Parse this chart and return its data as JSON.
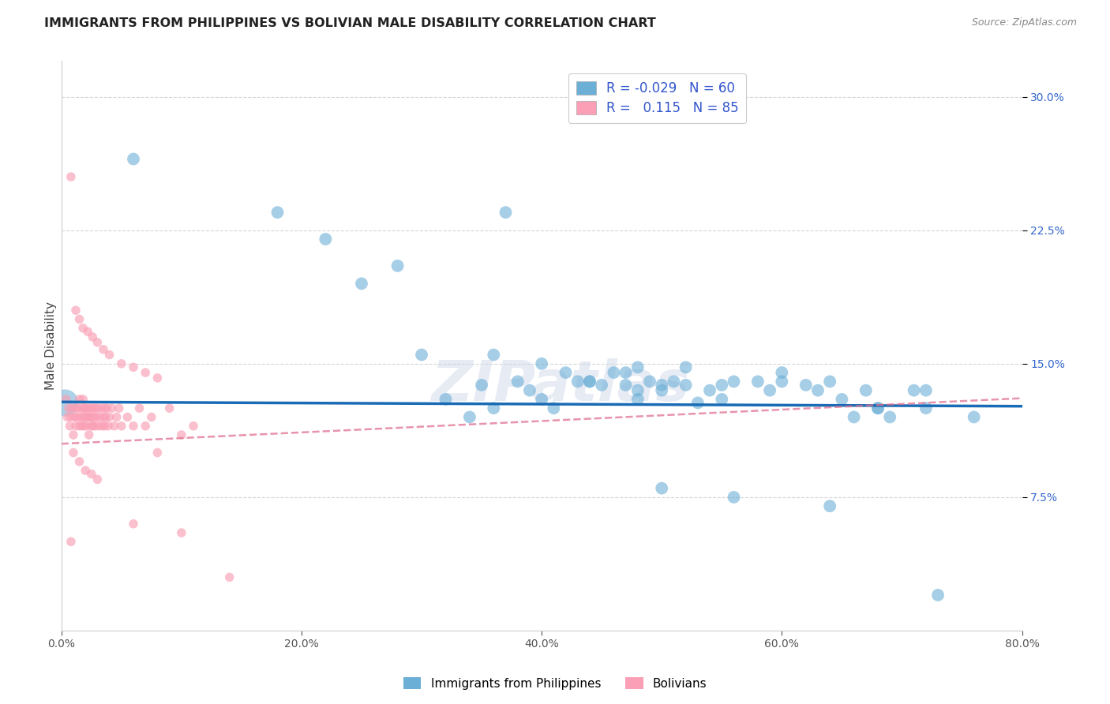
{
  "title": "IMMIGRANTS FROM PHILIPPINES VS BOLIVIAN MALE DISABILITY CORRELATION CHART",
  "source": "Source: ZipAtlas.com",
  "ylabel": "Male Disability",
  "ytick_labels": [
    "7.5%",
    "15.0%",
    "22.5%",
    "30.0%"
  ],
  "ytick_values": [
    0.075,
    0.15,
    0.225,
    0.3
  ],
  "xmin": 0.0,
  "xmax": 0.8,
  "ymin": 0.0,
  "ymax": 0.32,
  "legend_R_blue": "-0.029",
  "legend_N_blue": "60",
  "legend_R_pink": "0.115",
  "legend_N_pink": "85",
  "color_blue": "#6baed6",
  "color_pink": "#fa9fb5",
  "trendline_blue_color": "#1a6bb5",
  "trendline_pink_color": "#e07090",
  "watermark": "ZIPatlas",
  "background_color": "#ffffff",
  "grid_color": "#cccccc",
  "blue_x": [
    0.06,
    0.18,
    0.37,
    0.22,
    0.25,
    0.28,
    0.3,
    0.32,
    0.34,
    0.35,
    0.36,
    0.38,
    0.39,
    0.4,
    0.41,
    0.42,
    0.43,
    0.44,
    0.45,
    0.46,
    0.47,
    0.47,
    0.48,
    0.48,
    0.49,
    0.5,
    0.5,
    0.51,
    0.52,
    0.53,
    0.54,
    0.55,
    0.56,
    0.58,
    0.59,
    0.6,
    0.62,
    0.63,
    0.64,
    0.65,
    0.66,
    0.67,
    0.68,
    0.69,
    0.71,
    0.72,
    0.36,
    0.4,
    0.44,
    0.48,
    0.52,
    0.56,
    0.6,
    0.64,
    0.68,
    0.72,
    0.76,
    0.55,
    0.5,
    0.73
  ],
  "blue_y": [
    0.265,
    0.235,
    0.235,
    0.22,
    0.195,
    0.205,
    0.155,
    0.13,
    0.12,
    0.138,
    0.125,
    0.14,
    0.135,
    0.13,
    0.125,
    0.145,
    0.14,
    0.14,
    0.138,
    0.145,
    0.145,
    0.138,
    0.135,
    0.13,
    0.14,
    0.138,
    0.135,
    0.14,
    0.138,
    0.128,
    0.135,
    0.138,
    0.14,
    0.14,
    0.135,
    0.145,
    0.138,
    0.135,
    0.14,
    0.13,
    0.12,
    0.135,
    0.125,
    0.12,
    0.135,
    0.135,
    0.155,
    0.15,
    0.14,
    0.148,
    0.148,
    0.075,
    0.14,
    0.07,
    0.125,
    0.125,
    0.12,
    0.13,
    0.08,
    0.02
  ],
  "pink_x": [
    0.004,
    0.005,
    0.006,
    0.007,
    0.008,
    0.009,
    0.01,
    0.011,
    0.012,
    0.012,
    0.013,
    0.014,
    0.015,
    0.015,
    0.016,
    0.017,
    0.017,
    0.018,
    0.018,
    0.019,
    0.019,
    0.02,
    0.02,
    0.021,
    0.022,
    0.022,
    0.023,
    0.023,
    0.024,
    0.025,
    0.025,
    0.026,
    0.026,
    0.027,
    0.028,
    0.028,
    0.029,
    0.03,
    0.031,
    0.032,
    0.033,
    0.034,
    0.035,
    0.036,
    0.036,
    0.037,
    0.038,
    0.039,
    0.04,
    0.042,
    0.044,
    0.046,
    0.048,
    0.05,
    0.055,
    0.06,
    0.065,
    0.07,
    0.075,
    0.08,
    0.09,
    0.1,
    0.11,
    0.012,
    0.015,
    0.018,
    0.022,
    0.026,
    0.03,
    0.035,
    0.04,
    0.05,
    0.06,
    0.07,
    0.08,
    0.008,
    0.01,
    0.015,
    0.02,
    0.025,
    0.03,
    0.008,
    0.1,
    0.14,
    0.06
  ],
  "pink_y": [
    0.13,
    0.12,
    0.125,
    0.115,
    0.12,
    0.125,
    0.11,
    0.12,
    0.115,
    0.125,
    0.12,
    0.125,
    0.115,
    0.13,
    0.12,
    0.125,
    0.115,
    0.12,
    0.13,
    0.125,
    0.115,
    0.12,
    0.125,
    0.115,
    0.12,
    0.125,
    0.11,
    0.12,
    0.125,
    0.115,
    0.12,
    0.125,
    0.115,
    0.12,
    0.125,
    0.115,
    0.12,
    0.125,
    0.115,
    0.12,
    0.125,
    0.115,
    0.12,
    0.125,
    0.115,
    0.12,
    0.125,
    0.115,
    0.12,
    0.125,
    0.115,
    0.12,
    0.125,
    0.115,
    0.12,
    0.115,
    0.125,
    0.115,
    0.12,
    0.1,
    0.125,
    0.11,
    0.115,
    0.18,
    0.175,
    0.17,
    0.168,
    0.165,
    0.162,
    0.158,
    0.155,
    0.15,
    0.148,
    0.145,
    0.142,
    0.255,
    0.1,
    0.095,
    0.09,
    0.088,
    0.085,
    0.05,
    0.055,
    0.03,
    0.06
  ]
}
